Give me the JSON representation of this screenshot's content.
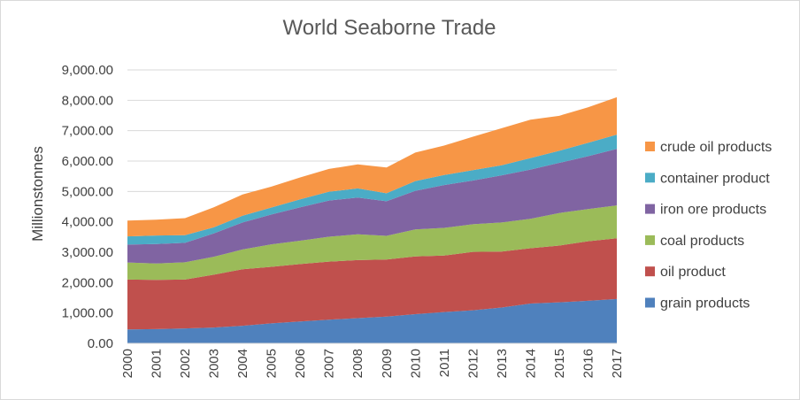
{
  "chart_data": {
    "type": "area",
    "stacked": true,
    "title": "World Seaborne Trade",
    "xlabel": "",
    "ylabel": "Millionstonnes",
    "ylim": [
      0,
      9000
    ],
    "yticks": [
      "0.00",
      "1,000.00",
      "2,000.00",
      "3,000.00",
      "4,000.00",
      "5,000.00",
      "6,000.00",
      "7,000.00",
      "8,000.00",
      "9,000.00"
    ],
    "ytick_values": [
      0,
      1000,
      2000,
      3000,
      4000,
      5000,
      6000,
      7000,
      8000,
      9000
    ],
    "grid": true,
    "legend_position": "right",
    "x": [
      "2000",
      "2001",
      "2002",
      "2003",
      "2004",
      "2005",
      "2006",
      "2007",
      "2008",
      "2009",
      "2010",
      "2011",
      "2012",
      "2013",
      "2014",
      "2015",
      "2016",
      "2017"
    ],
    "series": [
      {
        "name": "grain products",
        "color": "#4f81bd",
        "values": [
          460,
          470,
          490,
          520,
          580,
          660,
          720,
          780,
          830,
          880,
          960,
          1030,
          1090,
          1180,
          1310,
          1350,
          1400,
          1460
        ]
      },
      {
        "name": "oil product",
        "color": "#c0504d",
        "values": [
          1640,
          1620,
          1610,
          1740,
          1860,
          1860,
          1890,
          1910,
          1910,
          1880,
          1900,
          1860,
          1920,
          1840,
          1820,
          1870,
          1960,
          2000
        ]
      },
      {
        "name": "coal products",
        "color": "#9bbb59",
        "values": [
          560,
          540,
          570,
          590,
          650,
          740,
          770,
          820,
          850,
          780,
          890,
          910,
          910,
          960,
          970,
          1070,
          1060,
          1080
        ]
      },
      {
        "name": "iron ore products",
        "color": "#8064a2",
        "values": [
          590,
          640,
          640,
          770,
          890,
          980,
          1100,
          1190,
          1210,
          1140,
          1270,
          1410,
          1440,
          1550,
          1620,
          1650,
          1740,
          1860
        ]
      },
      {
        "name": "container product",
        "color": "#4bacc6",
        "values": [
          270,
          280,
          250,
          200,
          220,
          230,
          260,
          290,
          300,
          260,
          320,
          330,
          340,
          330,
          380,
          400,
          440,
          470
        ]
      },
      {
        "name": "crude oil products",
        "color": "#f79646",
        "values": [
          520,
          520,
          560,
          660,
          700,
          690,
          720,
          750,
          790,
          850,
          940,
          970,
          1100,
          1220,
          1260,
          1150,
          1170,
          1230
        ]
      }
    ]
  }
}
